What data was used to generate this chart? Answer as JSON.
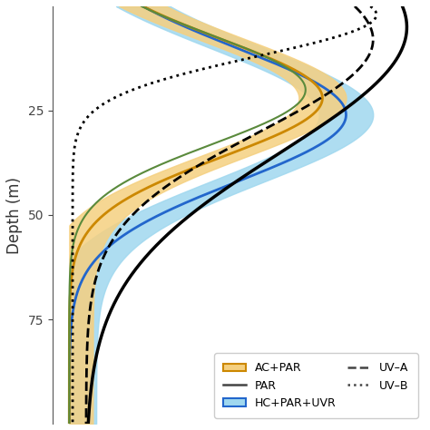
{
  "depth_min": 0,
  "depth_max": 100,
  "xlabel": "",
  "ylabel": "Depth (m)",
  "yticks": [
    25,
    50,
    75
  ],
  "xlim": [
    -0.05,
    1.05
  ],
  "ylim": [
    100,
    0
  ],
  "bg_color": "#ffffff",
  "ac_par_color": "#cc8800",
  "ac_par_fill": "#f5d080",
  "hc_par_uvr_color": "#2266cc",
  "hc_par_uvr_fill": "#a0d8ef",
  "par_line_color": "#444444",
  "uva_line_color": "#444444",
  "uvb_line_color": "#444444",
  "green_line_color": "#5a8a3c",
  "legend_fontsize": 9,
  "axis_fontsize": 12,
  "tick_fontsize": 10
}
